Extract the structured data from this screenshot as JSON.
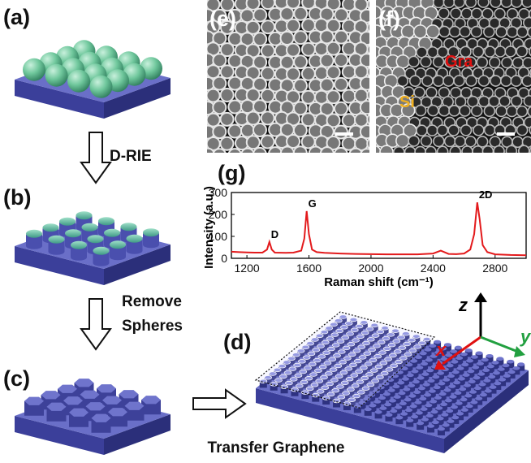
{
  "panel_labels": [
    "(a)",
    "(b)",
    "(c)",
    "(d)",
    "(e)",
    "(f)",
    "(g)"
  ],
  "steps": {
    "etch": "D-RIE",
    "remove": [
      "Remove",
      "Spheres"
    ],
    "transfer": "Transfer Graphene"
  },
  "sem_labels": {
    "si": "Si",
    "gra": "Gra"
  },
  "axes": {
    "z": "z",
    "x": "x",
    "y": "y"
  },
  "chart_data": {
    "type": "line",
    "xlabel": "Raman shift (cm⁻¹)",
    "ylabel": "Intensity (a.u.)",
    "annotations": [
      "D",
      "G",
      "2D"
    ],
    "x": [
      1100,
      1150,
      1200,
      1250,
      1300,
      1330,
      1345,
      1360,
      1380,
      1450,
      1500,
      1550,
      1570,
      1585,
      1600,
      1620,
      1650,
      1700,
      1800,
      1900,
      2000,
      2100,
      2200,
      2300,
      2400,
      2450,
      2500,
      2550,
      2600,
      2640,
      2665,
      2685,
      2700,
      2720,
      2750,
      2800,
      2900,
      3000
    ],
    "series": [
      {
        "color": "#e31a1c",
        "values": [
          30,
          28,
          27,
          26,
          26,
          40,
          75,
          40,
          26,
          25,
          26,
          35,
          90,
          215,
          110,
          40,
          28,
          25,
          22,
          20,
          19,
          18,
          18,
          18,
          22,
          35,
          20,
          19,
          22,
          40,
          110,
          255,
          180,
          60,
          28,
          18,
          15,
          14
        ]
      }
    ],
    "xlim": [
      1100,
      3000
    ],
    "ylim": [
      0,
      300
    ],
    "xticks": [
      1200,
      1600,
      2000,
      2400,
      2800
    ],
    "yticks": [
      0,
      100,
      200,
      300
    ]
  }
}
